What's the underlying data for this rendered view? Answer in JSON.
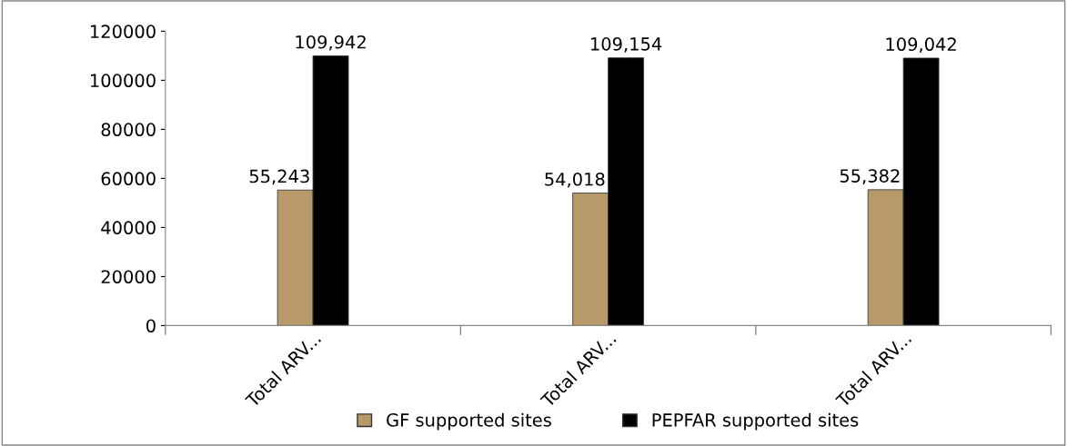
{
  "chart_data": {
    "type": "bar",
    "categories": [
      "Total ARV...",
      "Total ARV...",
      "Total ARV..."
    ],
    "series": [
      {
        "name": "GF supported sites",
        "color": "#b89a6a",
        "values": [
          55243,
          54018,
          55382
        ],
        "value_labels": [
          "55,243",
          "54,018",
          "55,382"
        ]
      },
      {
        "name": "PEPFAR supported sites",
        "color": "#000000",
        "values": [
          109942,
          109154,
          109042
        ],
        "value_labels": [
          "109,942",
          "109,154",
          "109,042"
        ]
      }
    ],
    "ylim": [
      0,
      120000
    ],
    "yticks": [
      0,
      20000,
      40000,
      60000,
      80000,
      100000,
      120000
    ],
    "grid": false,
    "legend": "bottom"
  }
}
